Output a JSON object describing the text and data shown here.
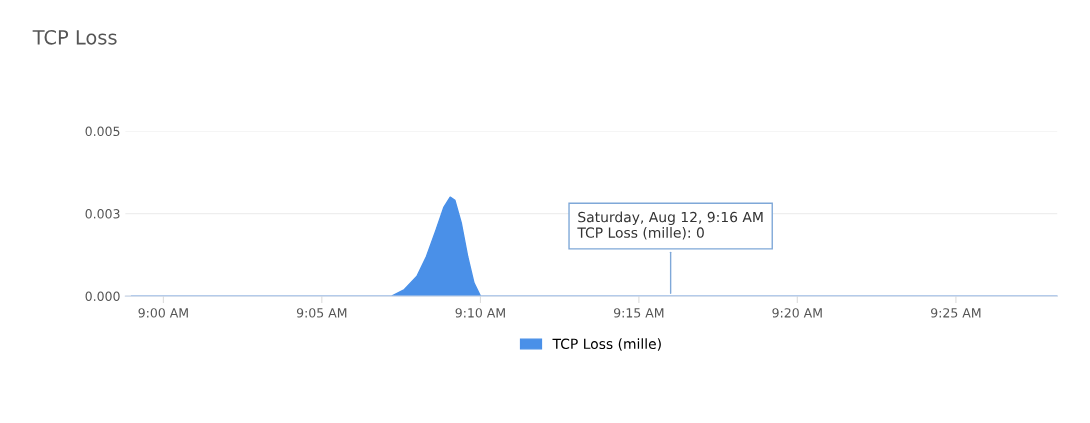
{
  "chart_data": {
    "type": "area",
    "title": "TCP Loss",
    "x": [
      8.9833,
      9.12,
      9.1267,
      9.1333,
      9.1383,
      9.1433,
      9.1475,
      9.1508,
      9.1533,
      9.1567,
      9.16,
      9.1633,
      9.1667,
      9.47
    ],
    "series": [
      {
        "name": "TCP Loss (mille)",
        "color": "#4a90e8",
        "values": [
          0,
          0,
          0.0002,
          0.0006,
          0.0012,
          0.002,
          0.0027,
          0.003,
          0.0029,
          0.0022,
          0.0012,
          0.0004,
          0,
          0
        ]
      }
    ],
    "xlim": [
      8.98,
      9.47
    ],
    "xticks": [
      {
        "value": 9.0,
        "label": "9:00 AM"
      },
      {
        "value": 9.0833,
        "label": "9:05 AM"
      },
      {
        "value": 9.1667,
        "label": "9:10 AM"
      },
      {
        "value": 9.25,
        "label": "9:15 AM"
      },
      {
        "value": 9.3333,
        "label": "9:20 AM"
      },
      {
        "value": 9.4167,
        "label": "9:25 AM"
      }
    ],
    "ylim": [
      0,
      0.005
    ],
    "yticks": [
      {
        "value": 0,
        "label": "0.000"
      },
      {
        "value": 0.0025,
        "label": "0.003"
      },
      {
        "value": 0.005,
        "label": "0.005"
      }
    ],
    "annotations": [
      {
        "text": "Saturday, Aug 12, 9:16 AM\nTCP Loss (mille): 0",
        "x": 9.2667,
        "y": 0
      }
    ],
    "grid": "y",
    "legend": "bottom"
  }
}
